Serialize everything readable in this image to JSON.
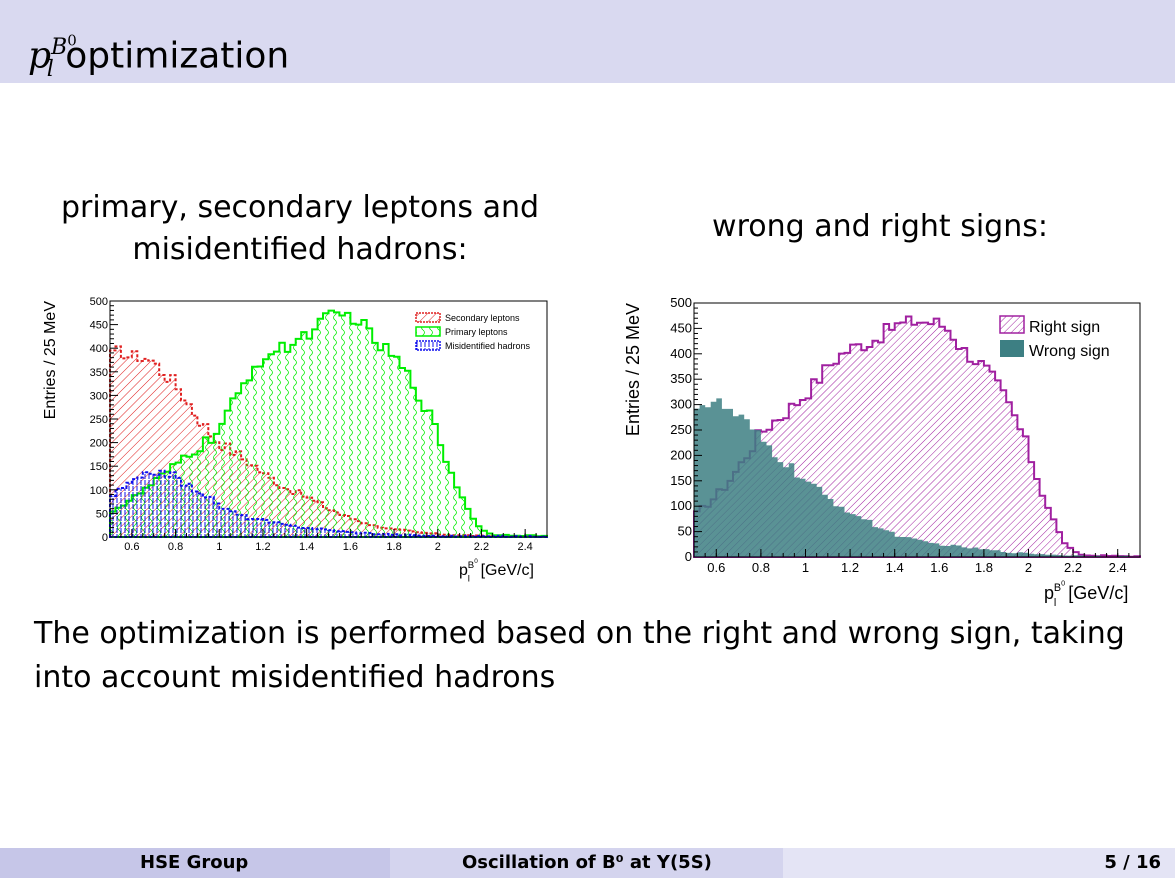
{
  "slide": {
    "title_main": "p",
    "title_sup": "B",
    "title_sup0": "0",
    "title_sub": "l",
    "title_rest": " optimization",
    "caption_left": "primary, secondary leptons and misidentified hadrons:",
    "caption_right": "wrong and right signs:",
    "body_text": "The optimization is performed based on the right and wrong sign, taking into account misidentified hadrons"
  },
  "footer": {
    "left": "HSE Group",
    "center": "Oscillation of B⁰ at Υ(5S)",
    "right": "5 / 16"
  },
  "colors": {
    "secondary": "#e02020",
    "primary": "#00ee00",
    "misid": "#1010ee",
    "right_sign": "#a020a0",
    "wrong_sign": "#3d7f83"
  },
  "chart_data": [
    {
      "type": "histogram",
      "xlabel": "p_l^{B^0} [GeV/c]",
      "ylabel": "Entries / 25 MeV",
      "xlim": [
        0.5,
        2.5
      ],
      "ylim": [
        0,
        500
      ],
      "bin_width": 0.025,
      "x_ticks": [
        "0.6",
        "0.8",
        "1",
        "1.2",
        "1.4",
        "1.6",
        "1.8",
        "2",
        "2.2",
        "2.4"
      ],
      "y_ticks": [
        "0",
        "50",
        "100",
        "150",
        "200",
        "250",
        "300",
        "350",
        "400",
        "450",
        "500"
      ],
      "legend_position": "top-right",
      "series": [
        {
          "name": "Secondary leptons",
          "knots": [
            [
              0.5,
              380
            ],
            [
              0.55,
              395
            ],
            [
              0.6,
              380
            ],
            [
              0.65,
              385
            ],
            [
              0.7,
              370
            ],
            [
              0.75,
              345
            ],
            [
              0.8,
              325
            ],
            [
              0.85,
              290
            ],
            [
              0.9,
              255
            ],
            [
              0.95,
              225
            ],
            [
              1.0,
              200
            ],
            [
              1.05,
              185
            ],
            [
              1.1,
              170
            ],
            [
              1.15,
              155
            ],
            [
              1.2,
              135
            ],
            [
              1.3,
              105
            ],
            [
              1.4,
              85
            ],
            [
              1.5,
              60
            ],
            [
              1.6,
              40
            ],
            [
              1.7,
              25
            ],
            [
              1.8,
              16
            ],
            [
              1.9,
              10
            ],
            [
              2.0,
              6
            ],
            [
              2.1,
              4
            ],
            [
              2.2,
              2
            ],
            [
              2.3,
              1
            ],
            [
              2.5,
              0
            ]
          ]
        },
        {
          "name": "Primary leptons",
          "knots": [
            [
              0.5,
              55
            ],
            [
              0.55,
              65
            ],
            [
              0.6,
              80
            ],
            [
              0.7,
              115
            ],
            [
              0.8,
              150
            ],
            [
              0.85,
              175
            ],
            [
              0.9,
              185
            ],
            [
              0.95,
              205
            ],
            [
              1.0,
              225
            ],
            [
              1.05,
              270
            ],
            [
              1.1,
              310
            ],
            [
              1.15,
              355
            ],
            [
              1.2,
              380
            ],
            [
              1.3,
              400
            ],
            [
              1.4,
              430
            ],
            [
              1.5,
              465
            ],
            [
              1.6,
              470
            ],
            [
              1.65,
              455
            ],
            [
              1.7,
              420
            ],
            [
              1.8,
              380
            ],
            [
              1.85,
              350
            ],
            [
              1.9,
              315
            ],
            [
              1.95,
              270
            ],
            [
              2.0,
              215
            ],
            [
              2.05,
              150
            ],
            [
              2.1,
              95
            ],
            [
              2.15,
              50
            ],
            [
              2.2,
              15
            ],
            [
              2.25,
              5
            ],
            [
              2.5,
              2
            ]
          ]
        },
        {
          "name": "Misidentified hadrons",
          "knots": [
            [
              0.5,
              85
            ],
            [
              0.55,
              100
            ],
            [
              0.6,
              115
            ],
            [
              0.65,
              125
            ],
            [
              0.7,
              140
            ],
            [
              0.75,
              140
            ],
            [
              0.8,
              125
            ],
            [
              0.85,
              110
            ],
            [
              0.9,
              100
            ],
            [
              0.95,
              85
            ],
            [
              1.0,
              65
            ],
            [
              1.05,
              55
            ],
            [
              1.1,
              45
            ],
            [
              1.2,
              35
            ],
            [
              1.3,
              25
            ],
            [
              1.4,
              20
            ],
            [
              1.5,
              15
            ],
            [
              1.6,
              10
            ],
            [
              1.8,
              5
            ],
            [
              2.0,
              2
            ],
            [
              2.5,
              1
            ]
          ]
        }
      ]
    },
    {
      "type": "histogram",
      "xlabel": "p_l^{B^0} [GeV/c]",
      "ylabel": "Entries / 25 MeV",
      "xlim": [
        0.5,
        2.5
      ],
      "ylim": [
        0,
        500
      ],
      "bin_width": 0.025,
      "x_ticks": [
        "0.6",
        "0.8",
        "1",
        "1.2",
        "1.4",
        "1.6",
        "1.8",
        "2",
        "2.2",
        "2.4"
      ],
      "y_ticks": [
        "0",
        "50",
        "100",
        "150",
        "200",
        "250",
        "300",
        "350",
        "400",
        "450",
        "500"
      ],
      "legend_position": "top-right",
      "series": [
        {
          "name": "Right sign",
          "knots": [
            [
              0.5,
              80
            ],
            [
              0.55,
              100
            ],
            [
              0.6,
              120
            ],
            [
              0.65,
              145
            ],
            [
              0.7,
              175
            ],
            [
              0.75,
              210
            ],
            [
              0.8,
              245
            ],
            [
              0.85,
              265
            ],
            [
              0.9,
              280
            ],
            [
              0.95,
              300
            ],
            [
              1.0,
              320
            ],
            [
              1.05,
              345
            ],
            [
              1.1,
              375
            ],
            [
              1.15,
              395
            ],
            [
              1.2,
              410
            ],
            [
              1.3,
              425
            ],
            [
              1.4,
              455
            ],
            [
              1.5,
              465
            ],
            [
              1.6,
              460
            ],
            [
              1.65,
              445
            ],
            [
              1.7,
              410
            ],
            [
              1.8,
              375
            ],
            [
              1.85,
              345
            ],
            [
              1.9,
              310
            ],
            [
              1.95,
              265
            ],
            [
              2.0,
              210
            ],
            [
              2.05,
              140
            ],
            [
              2.1,
              85
            ],
            [
              2.15,
              35
            ],
            [
              2.2,
              10
            ],
            [
              2.25,
              3
            ],
            [
              2.5,
              1
            ]
          ]
        },
        {
          "name": "Wrong sign",
          "knots": [
            [
              0.5,
              305
            ],
            [
              0.55,
              300
            ],
            [
              0.6,
              305
            ],
            [
              0.65,
              290
            ],
            [
              0.7,
              275
            ],
            [
              0.75,
              255
            ],
            [
              0.8,
              230
            ],
            [
              0.85,
              210
            ],
            [
              0.9,
              190
            ],
            [
              0.95,
              170
            ],
            [
              1.0,
              150
            ],
            [
              1.05,
              135
            ],
            [
              1.1,
              115
            ],
            [
              1.2,
              90
            ],
            [
              1.3,
              65
            ],
            [
              1.4,
              45
            ],
            [
              1.5,
              32
            ],
            [
              1.6,
              25
            ],
            [
              1.7,
              20
            ],
            [
              1.8,
              15
            ],
            [
              1.9,
              10
            ],
            [
              2.0,
              7
            ],
            [
              2.2,
              3
            ],
            [
              2.5,
              1
            ]
          ]
        }
      ]
    }
  ]
}
